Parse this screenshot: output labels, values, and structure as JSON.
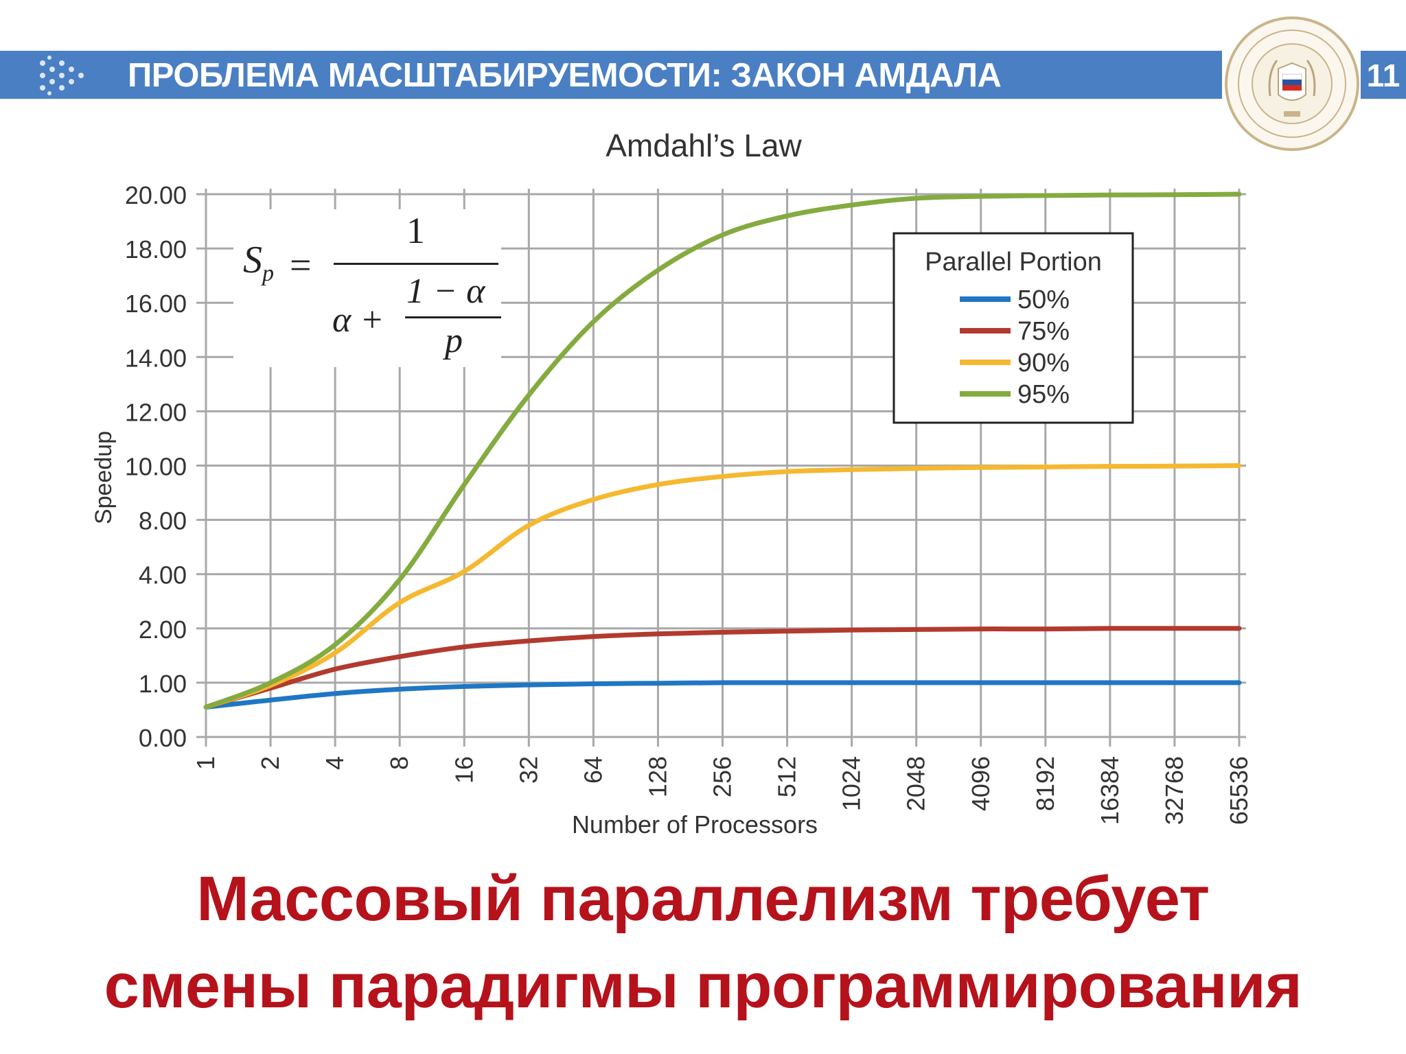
{
  "header": {
    "title": "ПРОБЛЕМА МАСШТАБИРУЕМОСТИ: ЗАКОН АМДАЛА",
    "page_number": "11",
    "bar_color": "#4a7fc3"
  },
  "emblem": {
    "icon": "university-seal-icon"
  },
  "chart_data": {
    "type": "line",
    "title": "Amdahl’s Law",
    "xlabel": "Number of Processors",
    "ylabel": "Speedup",
    "x": [
      1,
      2,
      4,
      8,
      16,
      32,
      64,
      128,
      256,
      512,
      1024,
      2048,
      4096,
      8192,
      16384,
      32768,
      65536
    ],
    "y_ticks": [
      "0.00",
      "1.00",
      "2.00",
      "4.00",
      "8.00",
      "10.00",
      "12.00",
      "14.00",
      "16.00",
      "18.00",
      "20.00"
    ],
    "grid": true,
    "legend_title": "Parallel Portion",
    "legend_position": "top-right",
    "series": [
      {
        "name": "50%",
        "color": "#1f77c4",
        "values": [
          0.55,
          0.68,
          0.8,
          0.88,
          0.93,
          0.96,
          0.98,
          0.99,
          1.0,
          1.0,
          1.0,
          1.0,
          1.0,
          1.0,
          1.0,
          1.0,
          1.0
        ]
      },
      {
        "name": "75%",
        "color": "#b23a2e",
        "values": [
          0.55,
          0.9,
          1.25,
          1.48,
          1.66,
          1.77,
          1.85,
          1.9,
          1.93,
          1.95,
          1.97,
          1.98,
          1.99,
          1.99,
          2.0,
          2.0,
          2.0
        ]
      },
      {
        "name": "90%",
        "color": "#f5b830",
        "values": [
          0.55,
          0.95,
          1.55,
          2.95,
          4.2,
          7.6,
          8.75,
          9.3,
          9.6,
          9.78,
          9.85,
          9.9,
          9.93,
          9.95,
          9.97,
          9.98,
          10.0
        ]
      },
      {
        "name": "95%",
        "color": "#84ab3f",
        "values": [
          0.55,
          1.0,
          1.7,
          3.8,
          9.3,
          12.6,
          15.3,
          17.2,
          18.5,
          19.2,
          19.6,
          19.85,
          19.92,
          19.95,
          19.97,
          19.98,
          20.0
        ]
      }
    ]
  },
  "formula": {
    "lhs": "S",
    "lhs_sub": "p",
    "equals": "=",
    "numerator": "1",
    "alpha_plus": "α +",
    "inner_numerator": "1 − α",
    "inner_denominator": "p"
  },
  "footer": {
    "line1": "Массовый параллелизм требует",
    "line2": "смены парадигмы программирования",
    "color": "#b5121b"
  }
}
